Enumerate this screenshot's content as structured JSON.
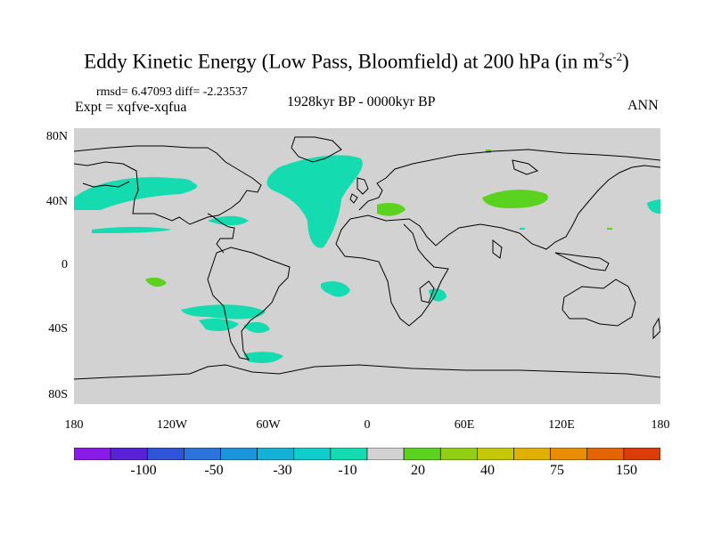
{
  "title": {
    "main": "Eddy Kinetic Energy (Low Pass, Bloomfield) at 200 hPa (in m",
    "sup1": "2",
    "mid": "s",
    "sup2": "-2",
    "end": ")"
  },
  "stats": "rmsd= 6.47093 diff= -2.23537",
  "experiment": "Expt = xqfve-xqfua",
  "period": "1928kyr BP - 0000kyr BP",
  "season": "ANN",
  "lat_labels": [
    "80N",
    "40N",
    "0",
    "40S",
    "80S"
  ],
  "lon_labels": [
    "180",
    "120W",
    "60W",
    "0",
    "60E",
    "120E",
    "180"
  ],
  "colorbar": {
    "colors": [
      "#8a1ae6",
      "#5a22d8",
      "#2f54d6",
      "#2a74dc",
      "#1a94da",
      "#14b0d6",
      "#10cccc",
      "#14dcb0",
      "#d2d2d2",
      "#5ad21e",
      "#92ce14",
      "#c4c808",
      "#e0b000",
      "#e88c00",
      "#e46400",
      "#dc3c0a"
    ],
    "labels": [
      "-100",
      "-50",
      "-30",
      "-10",
      "20",
      "40",
      "75",
      "150"
    ]
  },
  "colors": {
    "ocean_land_bg": "#d2d2d2",
    "neg_anomaly": "#14dcb0",
    "pos_anomaly": "#5ad21e",
    "coast": "#000000"
  }
}
